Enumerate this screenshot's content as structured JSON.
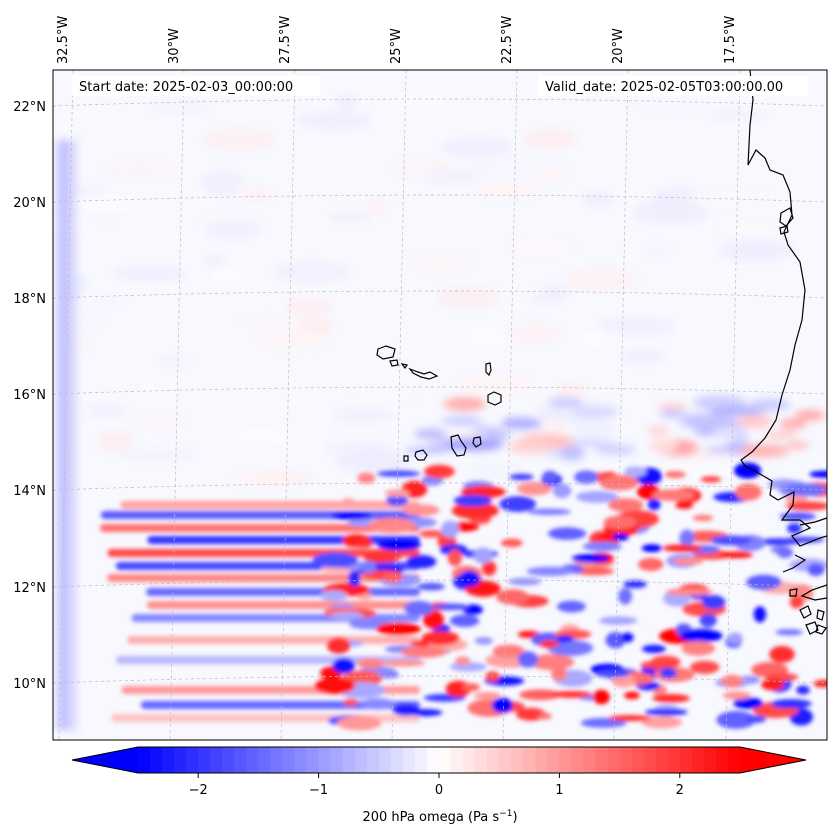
{
  "header": {
    "start_date": "Start date: 2025-02-03_00:00:00",
    "valid_date": "Valid_date: 2025-02-05T03:00:00.00"
  },
  "map": {
    "variable": "200 hPa omega",
    "longitude_labels": [
      "32.5°W",
      "30°W",
      "27.5°W",
      "25°W",
      "22.5°W",
      "20°W",
      "17.5°W"
    ],
    "latitude_labels": [
      "22°N",
      "20°N",
      "18°N",
      "16°N",
      "14°N",
      "12°N",
      "10°N"
    ]
  },
  "colorbar": {
    "label_main": "200 hPa omega (Pa s",
    "label_exp": "−1",
    "label_close": ")",
    "tick_labels": [
      "−2",
      "−1",
      "0",
      "1",
      "2"
    ],
    "tick_values": [
      -2,
      -1,
      0,
      1,
      2
    ],
    "range": [
      -2.5,
      2.5
    ],
    "extend": "both",
    "low_color": "#0000ff",
    "mid_color": "#ffffff",
    "high_color": "#ff0000"
  }
}
